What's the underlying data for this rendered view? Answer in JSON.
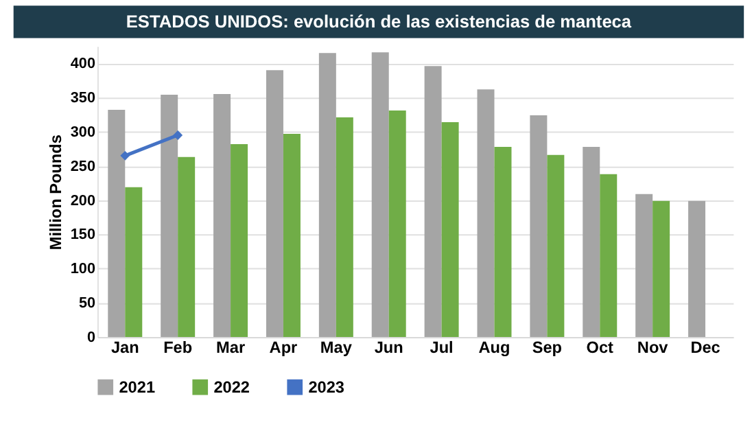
{
  "chart_data": {
    "type": "bar",
    "title": "ESTADOS UNIDOS: evolución de las existencias de manteca",
    "ylabel": "Million Pounds",
    "categories": [
      "Jan",
      "Feb",
      "Mar",
      "Apr",
      "May",
      "Jun",
      "Jul",
      "Aug",
      "Sep",
      "Oct",
      "Nov",
      "Dec"
    ],
    "series": [
      {
        "name": "2021",
        "color": "#a5a5a5",
        "values": [
          332,
          354,
          355,
          390,
          415,
          416,
          396,
          362,
          324,
          278,
          209,
          199
        ]
      },
      {
        "name": "2022",
        "color": "#70ad47",
        "values": [
          219,
          263,
          282,
          297,
          321,
          331,
          314,
          278,
          266,
          238,
          199,
          null
        ]
      },
      {
        "name": "2023",
        "color": "#4472c4",
        "type": "line",
        "marker": "diamond",
        "values": [
          265,
          295,
          null,
          null,
          null,
          null,
          null,
          null,
          null,
          null,
          null,
          null
        ]
      }
    ],
    "ylim": [
      0,
      425
    ],
    "yticks": [
      0,
      50,
      100,
      150,
      200,
      250,
      300,
      350,
      400
    ],
    "grid": "y",
    "legend": "bottom"
  }
}
